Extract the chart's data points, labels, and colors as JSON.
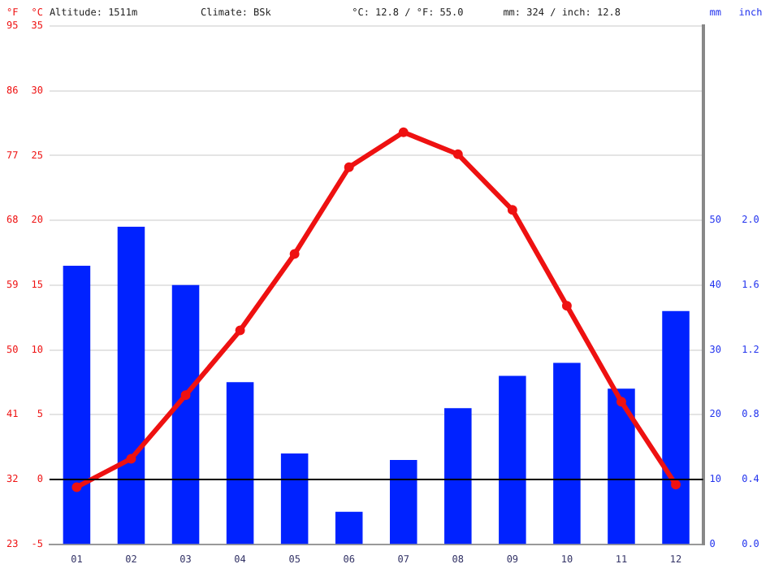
{
  "chart_data": {
    "type": "bar",
    "categories": [
      "01",
      "02",
      "03",
      "04",
      "05",
      "06",
      "07",
      "08",
      "09",
      "10",
      "11",
      "12"
    ],
    "series": [
      {
        "axis": "y2",
        "color": "#0022ff",
        "values": [
          43,
          49,
          40,
          25,
          14,
          5,
          13,
          21,
          26,
          28,
          24,
          36
        ]
      },
      {
        "type": "line",
        "axis": "y",
        "color": "#ee1111",
        "values": [
          -0.6,
          1.6,
          6.5,
          11.5,
          17.4,
          24.1,
          26.8,
          25.1,
          20.8,
          13.4,
          6.0,
          -0.4
        ]
      }
    ],
    "ylabel": "°C",
    "y2label": "mm",
    "y3label": "°F",
    "ylim": [
      -5,
      35
    ],
    "yticks": [
      -5,
      0,
      5,
      10,
      15,
      20,
      25,
      30,
      35
    ],
    "y2lim": [
      0,
      80
    ],
    "y2ticks": [
      0,
      10,
      20,
      30,
      40,
      50
    ],
    "y3lim": [
      23,
      95
    ],
    "y3ticks": [
      23,
      32,
      41,
      50,
      59,
      68,
      77,
      86,
      95
    ],
    "ref_lines": [
      {
        "axis": "y",
        "value": 0,
        "color": "#000000"
      }
    ],
    "annotations": [
      "Altitude: 1511m",
      "Climate: BSk",
      "°C: 12.8 / °F: 55.0",
      "mm: 324 / inch: 12.8",
      "inch",
      "0.0",
      "0.4",
      "0.8",
      "1.2",
      "1.6",
      "2.0"
    ],
    "grid": "y",
    "legend": false,
    "marker": "circle",
    "line_style": "solid"
  }
}
